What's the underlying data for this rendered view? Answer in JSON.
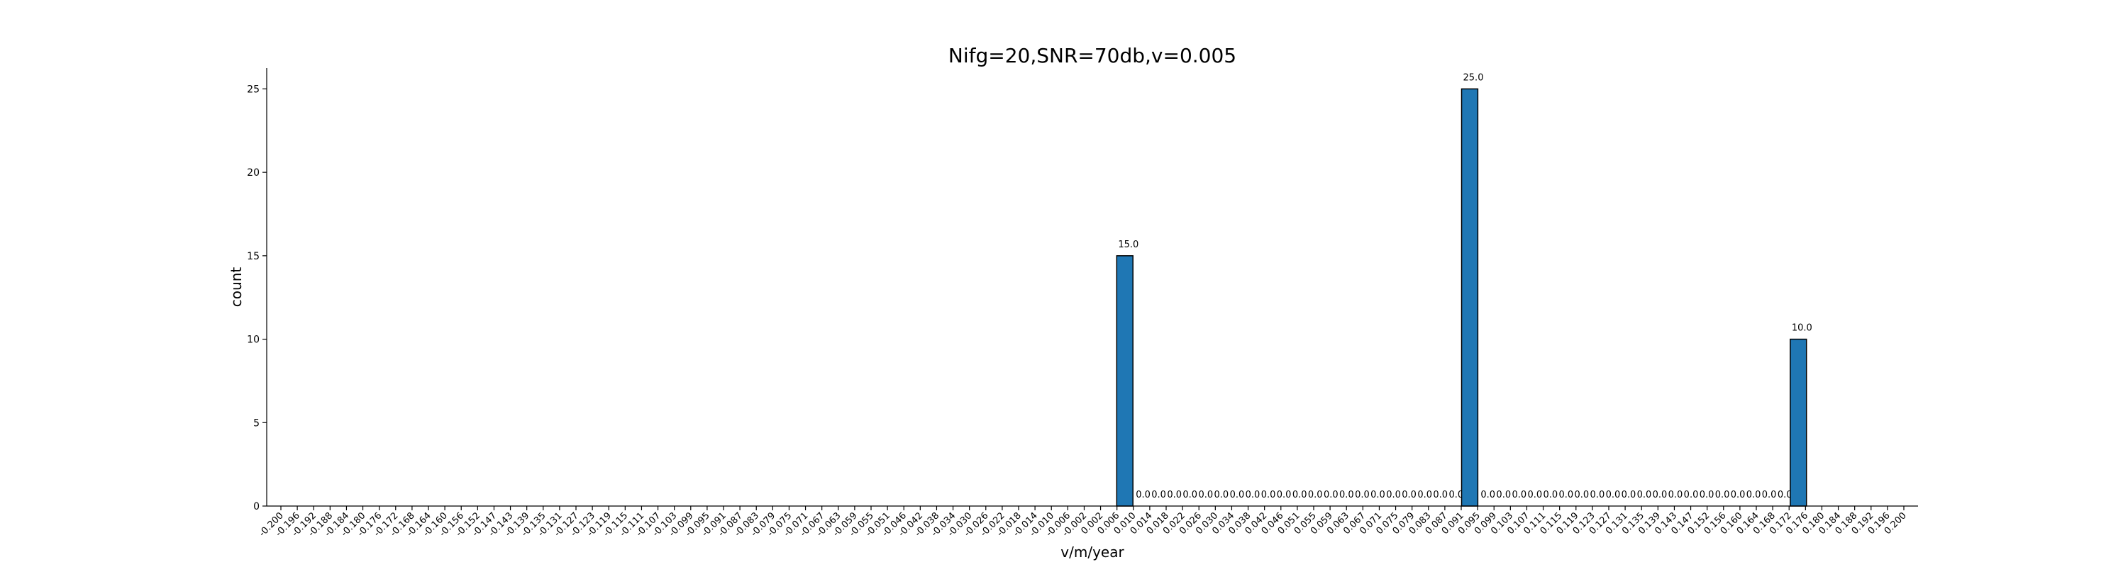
{
  "chart_data": {
    "type": "bar",
    "title": "Nifg=20,SNR=70db,v=0.005",
    "xlabel": "v/m/year",
    "ylabel": "count",
    "ylim": [
      0,
      26.25
    ],
    "yticks": [
      0,
      5,
      10,
      15,
      20,
      25
    ],
    "grid": false,
    "bar_color": "#1f77b4",
    "bar_edge_color": "#000000",
    "x_ticks": [
      "-0.200",
      "-0.196",
      "-0.192",
      "-0.188",
      "-0.184",
      "-0.180",
      "-0.176",
      "-0.172",
      "-0.168",
      "-0.164",
      "-0.160",
      "-0.156",
      "-0.152",
      "-0.147",
      "-0.143",
      "-0.139",
      "-0.135",
      "-0.131",
      "-0.127",
      "-0.123",
      "-0.119",
      "-0.115",
      "-0.111",
      "-0.107",
      "-0.103",
      "-0.099",
      "-0.095",
      "-0.091",
      "-0.087",
      "-0.083",
      "-0.079",
      "-0.075",
      "-0.071",
      "-0.067",
      "-0.063",
      "-0.059",
      "-0.055",
      "-0.051",
      "-0.046",
      "-0.042",
      "-0.038",
      "-0.034",
      "-0.030",
      "-0.026",
      "-0.022",
      "-0.018",
      "-0.014",
      "-0.010",
      "-0.006",
      "-0.002",
      "0.002",
      "0.006",
      "0.010",
      "0.014",
      "0.018",
      "0.022",
      "0.026",
      "0.030",
      "0.034",
      "0.038",
      "0.042",
      "0.046",
      "0.051",
      "0.055",
      "0.059",
      "0.063",
      "0.067",
      "0.071",
      "0.075",
      "0.079",
      "0.083",
      "0.087",
      "0.091",
      "0.095",
      "0.099",
      "0.103",
      "0.107",
      "0.111",
      "0.115",
      "0.119",
      "0.123",
      "0.127",
      "0.131",
      "0.135",
      "0.139",
      "0.143",
      "0.147",
      "0.152",
      "0.156",
      "0.160",
      "0.164",
      "0.168",
      "0.172",
      "0.176",
      "0.180",
      "0.184",
      "0.188",
      "0.192",
      "0.196",
      "0.200"
    ],
    "bars": [
      {
        "x_left": 0.006,
        "x_right": 0.01,
        "value": 15.0,
        "label": "15.0"
      },
      {
        "x_left": 0.01,
        "x_right": 0.091,
        "value": 0.0,
        "label": "0.0",
        "repeat_label": 21
      },
      {
        "x_left": 0.091,
        "x_right": 0.095,
        "value": 25.0,
        "label": "25.0"
      },
      {
        "x_left": 0.095,
        "x_right": 0.172,
        "value": 0.0,
        "label": "0.0",
        "repeat_label": 20
      },
      {
        "x_left": 0.172,
        "x_right": 0.176,
        "value": 10.0,
        "label": "10.0"
      }
    ]
  }
}
